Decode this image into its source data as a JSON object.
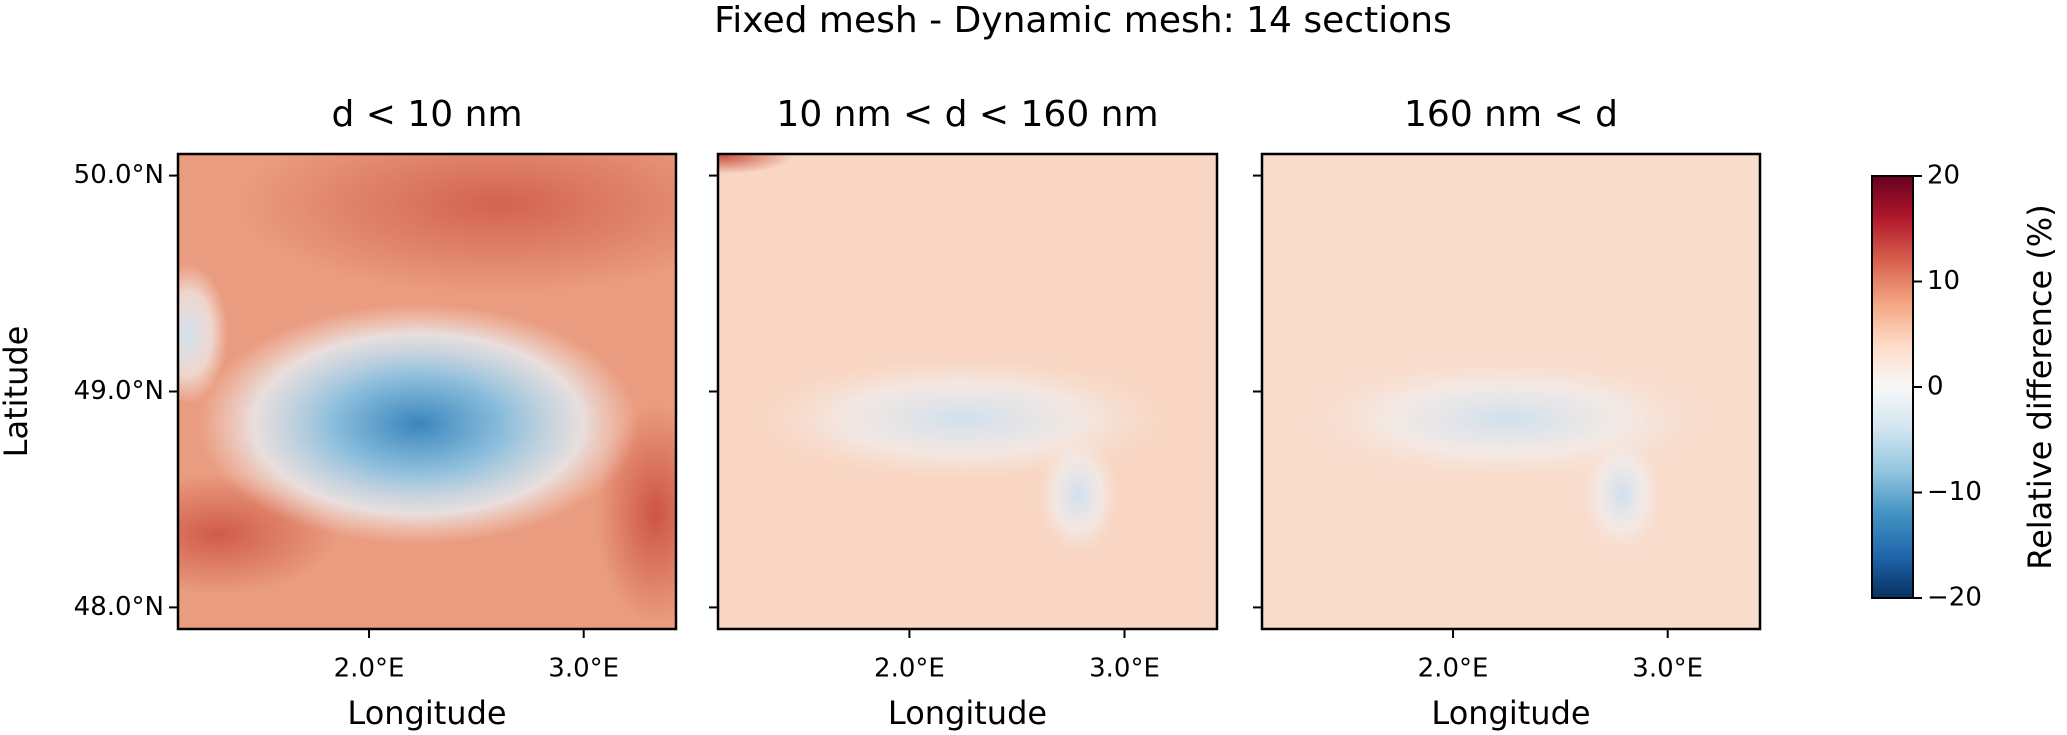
{
  "title": "Fixed mesh - Dynamic mesh: 14 sections",
  "chart_data": [
    {
      "type": "heatmap",
      "title": "d < 10 nm",
      "xlabel": "Longitude",
      "ylabel": "Latitude",
      "xlim": [
        1.11,
        3.43
      ],
      "ylim": [
        47.9,
        50.1
      ],
      "xticks": [
        {
          "value": 2,
          "label": "2.0°E"
        },
        {
          "value": 3,
          "label": "3.0°E"
        }
      ],
      "yticks": [
        {
          "value": 48,
          "label": "48.0°N"
        },
        {
          "value": 49,
          "label": "49.0°N"
        },
        {
          "value": 50,
          "label": "50.0°N"
        }
      ]
    },
    {
      "type": "heatmap",
      "title": "10 nm < d < 160 nm",
      "xlabel": "Longitude",
      "xlim": [
        1.11,
        3.43
      ],
      "ylim": [
        47.9,
        50.1
      ],
      "xticks": [
        {
          "value": 2,
          "label": "2.0°E"
        },
        {
          "value": 3,
          "label": "3.0°E"
        }
      ]
    },
    {
      "type": "heatmap",
      "title": "160 nm < d",
      "xlabel": "Longitude",
      "xlim": [
        1.11,
        3.43
      ],
      "ylim": [
        47.9,
        50.1
      ],
      "xticks": [
        {
          "value": 2,
          "label": "2.0°E"
        },
        {
          "value": 3,
          "label": "3.0°E"
        }
      ]
    }
  ],
  "colorbar": {
    "label": "Relative difference (%)",
    "lim": [
      -20,
      20
    ],
    "ticks": [
      {
        "value": -20,
        "label": "−20"
      },
      {
        "value": -10,
        "label": "−10"
      },
      0,
      10,
      20
    ],
    "colors": [
      "#053061",
      "#2166ac",
      "#4393c3",
      "#92c5de",
      "#d1e5f0",
      "#f7f7f7",
      "#fddbc7",
      "#f4a582",
      "#d6604d",
      "#b2182b",
      "#67001f"
    ]
  }
}
